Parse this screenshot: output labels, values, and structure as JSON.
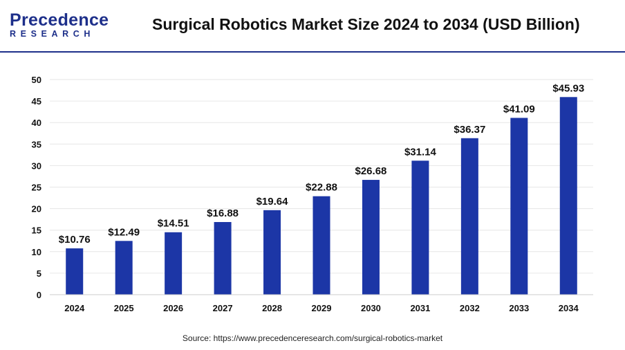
{
  "header": {
    "logo_main": "Precedence",
    "logo_sub": "RESEARCH",
    "title": "Surgical Robotics Market Size 2024 to 2034 (USD Billion)"
  },
  "source": "Source: https://www.precedenceresearch.com/surgical-robotics-market",
  "colors": {
    "bar": "#1c36a6",
    "accent": "#1d2f8a",
    "grid": "#e6e6e6"
  },
  "chart_data": {
    "type": "bar",
    "title": "Surgical Robotics Market Size 2024 to 2034 (USD Billion)",
    "categories": [
      "2024",
      "2025",
      "2026",
      "2027",
      "2028",
      "2029",
      "2030",
      "2031",
      "2032",
      "2033",
      "2034"
    ],
    "values": [
      10.76,
      12.49,
      14.51,
      16.88,
      19.64,
      22.88,
      26.68,
      31.14,
      36.37,
      41.09,
      45.93
    ],
    "data_labels": [
      "$10.76",
      "$12.49",
      "$14.51",
      "$16.88",
      "$19.64",
      "$22.88",
      "$26.68",
      "$31.14",
      "$36.37",
      "$41.09",
      "$45.93"
    ],
    "ylim": [
      0,
      50
    ],
    "yticks": [
      "0",
      "5",
      "10",
      "15",
      "20",
      "25",
      "30",
      "35",
      "40",
      "45",
      "50"
    ],
    "xlabel": "",
    "ylabel": "",
    "grid": true,
    "legend": "none"
  }
}
